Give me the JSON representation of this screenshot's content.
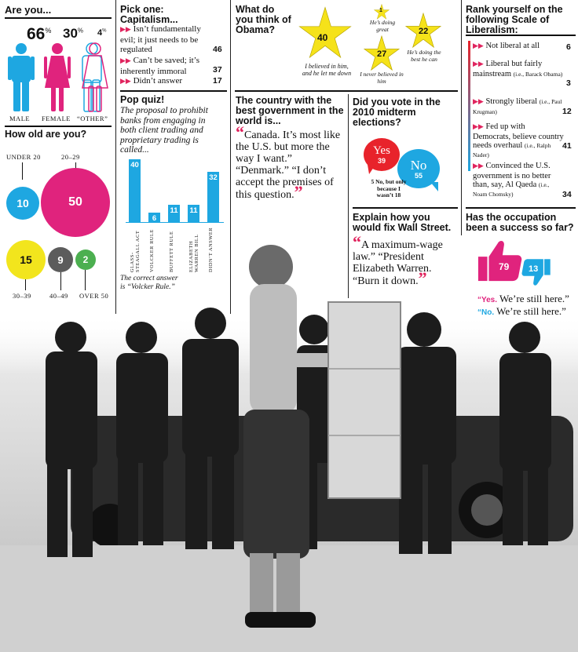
{
  "age_gender": {
    "title": "Are you...",
    "items": [
      {
        "pct": "66",
        "label": "MALE",
        "color": "#1ea7e1"
      },
      {
        "pct": "30",
        "label": "FEMALE",
        "color": "#e0237d"
      },
      {
        "pct": "4",
        "label": "“OTHER”",
        "color": "#1ea7e1"
      }
    ],
    "pct_sign": "%"
  },
  "age": {
    "title": "How old are you?",
    "groups": [
      {
        "label": "UNDER 20",
        "value": "10",
        "color": "#1ea7e1"
      },
      {
        "label": "20–29",
        "value": "50",
        "color": "#e0237d"
      },
      {
        "label": "30–39",
        "value": "15",
        "color": "#f2e51d"
      },
      {
        "label": "40–49",
        "value": "9",
        "color": "#5c5c5c"
      },
      {
        "label": "OVER 50",
        "value": "2",
        "color": "#4caf50"
      }
    ]
  },
  "capitalism": {
    "title": "Pick one: Capitalism...",
    "options": [
      {
        "text": "Isn’t fundamentally evil; it just needs to be regulated",
        "value": "46"
      },
      {
        "text": "Can’t be saved; it’s inherently immoral",
        "value": "37"
      },
      {
        "text": "Didn’t answer",
        "value": "17"
      }
    ]
  },
  "pop_quiz": {
    "title": "Pop quiz!",
    "question": "The proposal to prohibit banks from engaging in both client trading and proprietary trading is called...",
    "footnote": "The correct answer is “Volcker Rule.”"
  },
  "chart_data": {
    "type": "bar",
    "categories": [
      "GLASS-STEAGALL ACT",
      "VOLCKER RULE",
      "BUFFETT RULE",
      "ELIZABETH WARREN BILL",
      "DIDN’T ANSWER"
    ],
    "values": [
      40,
      6,
      11,
      11,
      32
    ],
    "ylim": [
      0,
      40
    ],
    "color": "#1ea7e1"
  },
  "obama": {
    "title": "What do you think of Obama?",
    "stars": [
      {
        "value": "40",
        "caption": "I believed in him, and he let me down"
      },
      {
        "value": "1",
        "caption": "He’s doing great"
      },
      {
        "value": "22",
        "caption": "He’s doing the best he can"
      },
      {
        "value": "27",
        "caption": "I never believed in him"
      }
    ],
    "star_color": "#f5e21a"
  },
  "best_gov": {
    "title": "The country with the best government in the world is...",
    "quote": "Canada. It’s most like the U.S. but more the way I want.” “Denmark.” “I don’t accept the premises of this question."
  },
  "midterm": {
    "title": "Did you vote in the 2010 midterm elections?",
    "yes_label": "Yes",
    "yes_value": "39",
    "no_label": "No",
    "no_value": "55",
    "note": "5 No, but only because I wasn’t 18",
    "yes_color": "#e8232b",
    "no_color": "#1ea7e1"
  },
  "wall_street": {
    "title": "Explain how you would fix Wall Street.",
    "quote": "A maximum-wage law.” “President Elizabeth Warren. “Burn it down."
  },
  "liberalism": {
    "title": "Rank yourself on the following Scale of Liberalism:",
    "items": [
      {
        "text": "Not liberal at all",
        "small": "",
        "value": "6"
      },
      {
        "text": "Liberal but fairly mainstream",
        "small": "(i.e., Barack Obama)",
        "value": "3"
      },
      {
        "text": "Strongly liberal",
        "small": "(i.e., Paul Krugman)",
        "value": "12"
      },
      {
        "text": "Fed up with Democrats, believe country needs overhaul",
        "small": "(i.e., Ralph Nader)",
        "value": "41"
      },
      {
        "text": "Convinced the U.S. government is no better than, say, Al Qaeda",
        "small": "(i.e., Noam Chomsky)",
        "value": "34"
      }
    ]
  },
  "occupation": {
    "title": "Has the occupation been a success so far?",
    "up_value": "79",
    "down_value": "13",
    "yes_label": "“Yes.",
    "yes_text": " We’re still here.”",
    "no_label": "“No.",
    "no_text": " We’re still here.”",
    "up_color": "#e0237d",
    "down_color": "#1ea7e1"
  }
}
